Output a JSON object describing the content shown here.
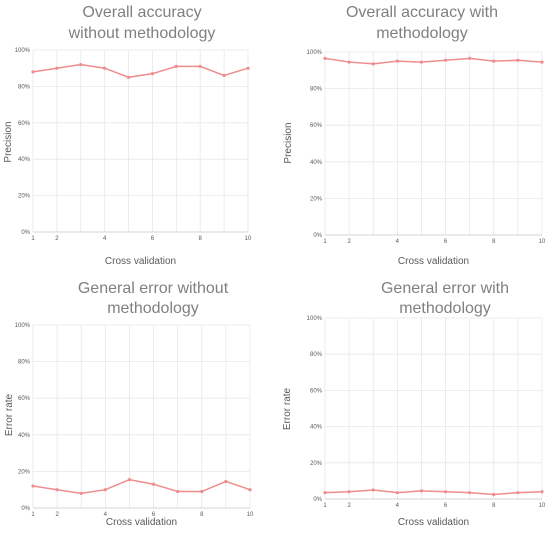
{
  "chart_data": [
    {
      "type": "line",
      "title_lines": [
        "Overall accuracy",
        "without methodology"
      ],
      "xlabel": "Cross validation",
      "ylabel": "Precision",
      "x": [
        1,
        2,
        3,
        4,
        5,
        6,
        7,
        8,
        9,
        10
      ],
      "values": [
        0.88,
        0.9,
        0.92,
        0.9,
        0.85,
        0.87,
        0.91,
        0.91,
        0.86,
        0.9
      ],
      "xticks": [
        1,
        2,
        4,
        6,
        8,
        10
      ],
      "yticks": [
        "0%",
        "20%",
        "40%",
        "60%",
        "80%",
        "100%"
      ],
      "xlim": [
        1,
        10
      ],
      "ylim": [
        0,
        1
      ],
      "grid": true
    },
    {
      "type": "line",
      "title_lines": [
        "Overall accuracy with",
        "methodology"
      ],
      "xlabel": "Cross validation",
      "ylabel": "Precision",
      "x": [
        1,
        2,
        3,
        4,
        5,
        6,
        7,
        8,
        9,
        10
      ],
      "values": [
        0.965,
        0.945,
        0.935,
        0.95,
        0.945,
        0.955,
        0.965,
        0.95,
        0.955,
        0.945
      ],
      "xticks": [
        1,
        2,
        4,
        6,
        8,
        10
      ],
      "yticks": [
        "0%",
        "20%",
        "40%",
        "60%",
        "80%",
        "100%"
      ],
      "xlim": [
        1,
        10
      ],
      "ylim": [
        0,
        1
      ],
      "grid": true
    },
    {
      "type": "line",
      "title_lines": [
        "General error without",
        "methodology"
      ],
      "xlabel": "Cross validation",
      "ylabel": "Error rate",
      "x": [
        1,
        2,
        3,
        4,
        5,
        6,
        7,
        8,
        9,
        10
      ],
      "values": [
        0.12,
        0.1,
        0.08,
        0.1,
        0.155,
        0.13,
        0.09,
        0.09,
        0.145,
        0.1
      ],
      "xticks": [
        1,
        2,
        4,
        6,
        8,
        10
      ],
      "yticks": [
        "0%",
        "20%",
        "40%",
        "60%",
        "80%",
        "100%"
      ],
      "xlim": [
        1,
        10
      ],
      "ylim": [
        0,
        1
      ],
      "grid": true
    },
    {
      "type": "line",
      "title_lines": [
        "General error with",
        "methodology"
      ],
      "xlabel": "Cross validation",
      "ylabel": "Error rate",
      "x": [
        1,
        2,
        3,
        4,
        5,
        6,
        7,
        8,
        9,
        10
      ],
      "values": [
        0.035,
        0.04,
        0.05,
        0.035,
        0.045,
        0.04,
        0.035,
        0.025,
        0.035,
        0.04
      ],
      "xticks": [
        1,
        2,
        4,
        6,
        8,
        10
      ],
      "yticks": [
        "0%",
        "20%",
        "40%",
        "60%",
        "80%",
        "100%"
      ],
      "xlim": [
        1,
        10
      ],
      "ylim": [
        0,
        1
      ],
      "grid": true
    }
  ]
}
